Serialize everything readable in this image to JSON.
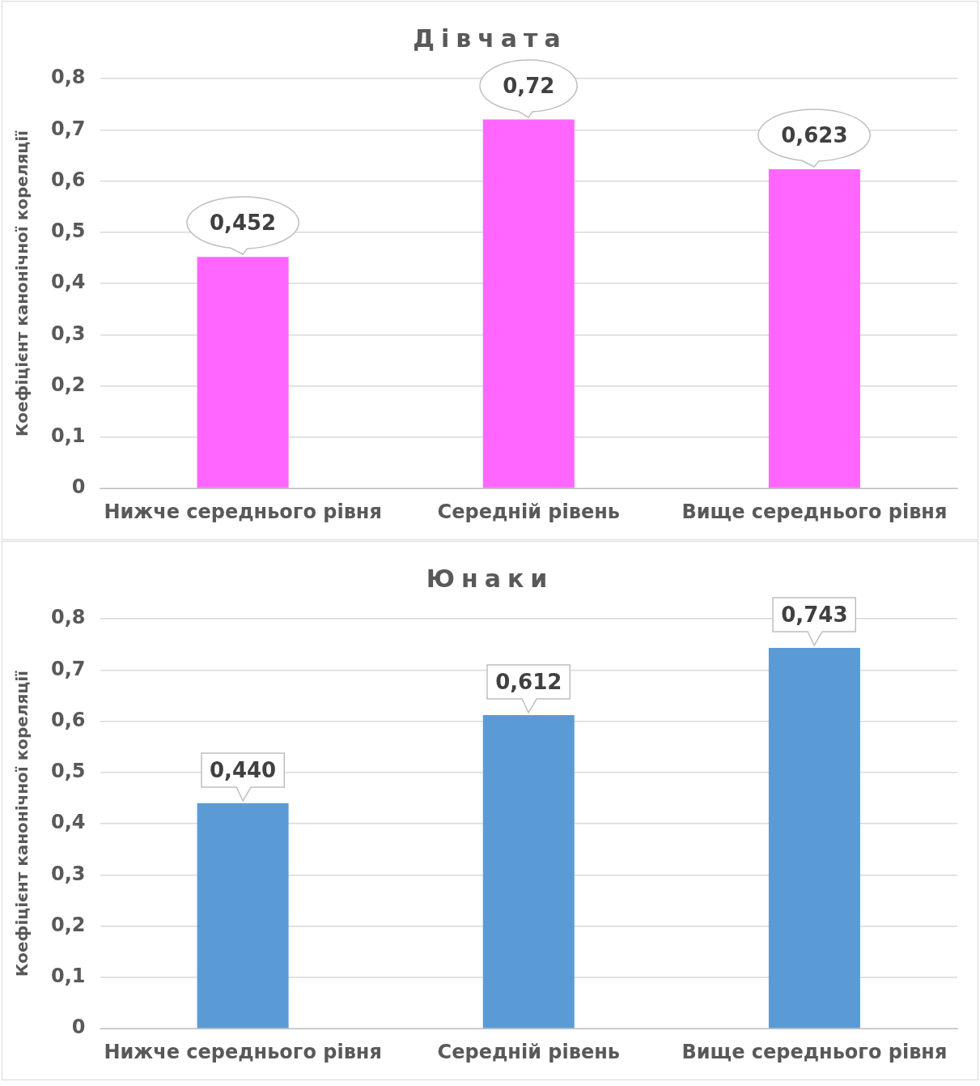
{
  "chart_data": [
    {
      "type": "bar",
      "title": "Дівчата",
      "ylabel": "Коефіцієнт канонічної кореляції",
      "categories": [
        "Нижче середнього рівня",
        "Середній рівень",
        "Вище середнього рівня"
      ],
      "values": [
        0.452,
        0.72,
        0.623
      ],
      "value_labels": [
        "0,452",
        "0,72",
        "0,623"
      ],
      "color": "#ff66ff",
      "ylim": [
        0,
        0.8
      ],
      "yticks": [
        0,
        {
          "value": 0.1,
          "label": "0,1"
        },
        {
          "value": 0.2,
          "label": "0,2"
        },
        {
          "value": 0.3,
          "label": "0,3"
        },
        {
          "value": 0.4,
          "label": "0,4"
        },
        {
          "value": 0.5,
          "label": "0,5"
        },
        {
          "value": 0.6,
          "label": "0,6"
        },
        {
          "value": 0.7,
          "label": "0,7"
        },
        {
          "value": 0.8,
          "label": "0,8"
        }
      ],
      "grid": "y",
      "legend": false
    },
    {
      "type": "bar",
      "title": "Юнаки",
      "ylabel": "Коефіцієнт канонічної кореляції",
      "categories": [
        "Нижче середнього рівня",
        "Середній рівень",
        "Вище середнього рівня"
      ],
      "values": [
        0.44,
        0.612,
        0.743
      ],
      "value_labels": [
        "0,440",
        "0,612",
        "0,743"
      ],
      "color": "#5b9bd5",
      "ylim": [
        0,
        0.8
      ],
      "yticks": [
        0,
        {
          "value": 0.1,
          "label": "0,1"
        },
        {
          "value": 0.2,
          "label": "0,2"
        },
        {
          "value": 0.3,
          "label": "0,3"
        },
        {
          "value": 0.4,
          "label": "0,4"
        },
        {
          "value": 0.5,
          "label": "0,5"
        },
        {
          "value": 0.6,
          "label": "0,6"
        },
        {
          "value": 0.7,
          "label": "0,7"
        },
        {
          "value": 0.8,
          "label": "0,8"
        }
      ],
      "grid": "y",
      "legend": false
    }
  ]
}
